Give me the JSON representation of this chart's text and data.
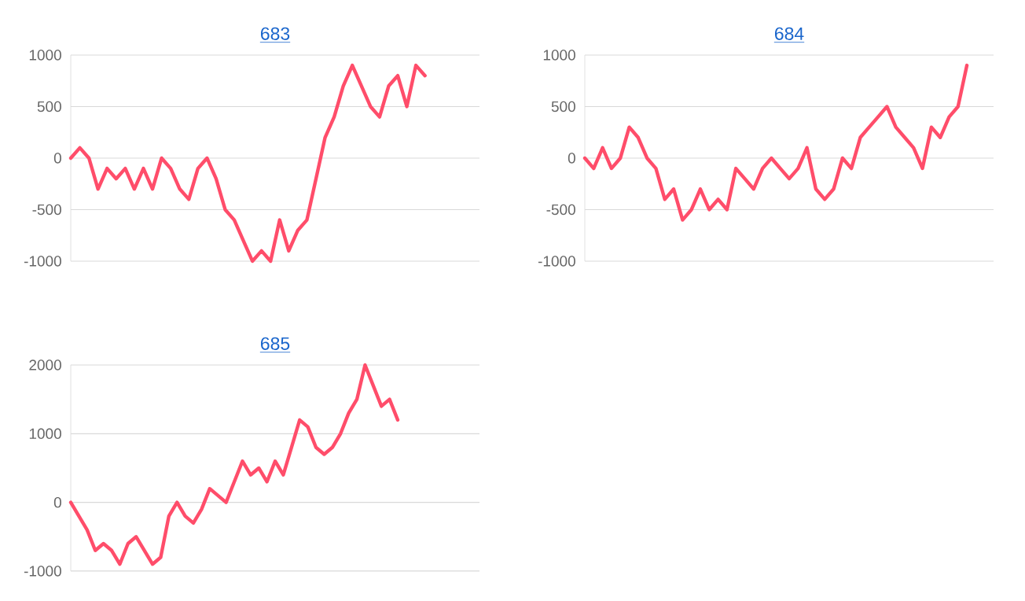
{
  "chart_data": [
    {
      "type": "line",
      "title": "683",
      "categories": [
        null,
        null,
        null,
        null,
        null,
        null,
        null,
        null,
        null,
        null,
        null,
        null,
        null,
        null,
        null,
        null,
        null,
        null,
        null,
        null,
        null,
        null,
        null,
        null,
        null,
        null,
        null,
        null,
        null,
        null,
        null,
        null,
        null,
        null,
        null,
        null,
        null,
        null,
        null,
        null,
        null,
        null,
        null,
        null,
        null,
        null
      ],
      "series": [
        {
          "color": "#ff4d6a",
          "values": [
            0,
            100,
            0,
            -300,
            -100,
            -200,
            -100,
            -300,
            -100,
            -300,
            0,
            -100,
            -300,
            -400,
            -100,
            0,
            -200,
            -500,
            -600,
            -800,
            -1000,
            -900,
            -1000,
            -600,
            -900,
            -700,
            -600,
            -200,
            200,
            400,
            700,
            900,
            700,
            500,
            400,
            700,
            800,
            500,
            900,
            800,
            null,
            null,
            null,
            null,
            null,
            null
          ]
        }
      ],
      "ylim": [
        -1000,
        1000
      ],
      "yticks": [
        -1000,
        -500,
        0,
        500,
        1000
      ],
      "grid": "y",
      "tick_labels": "y"
    },
    {
      "type": "line",
      "title": "684",
      "categories": [
        null,
        null,
        null,
        null,
        null,
        null,
        null,
        null,
        null,
        null,
        null,
        null,
        null,
        null,
        null,
        null,
        null,
        null,
        null,
        null,
        null,
        null,
        null,
        null,
        null,
        null,
        null,
        null,
        null,
        null,
        null,
        null,
        null,
        null,
        null,
        null,
        null,
        null,
        null,
        null,
        null,
        null,
        null,
        null,
        null,
        null,
        null
      ],
      "series": [
        {
          "color": "#ff4d6a",
          "values": [
            0,
            -100,
            100,
            -100,
            0,
            300,
            200,
            0,
            -100,
            -400,
            -300,
            -600,
            -500,
            -300,
            -500,
            -400,
            -500,
            -100,
            -200,
            -300,
            -100,
            0,
            -100,
            -200,
            -100,
            100,
            -300,
            -400,
            -300,
            0,
            -100,
            200,
            300,
            400,
            500,
            300,
            200,
            100,
            -100,
            300,
            200,
            400,
            500,
            900,
            null,
            null,
            null
          ]
        }
      ],
      "ylim": [
        -1000,
        1000
      ],
      "yticks": [
        -1000,
        -500,
        0,
        500,
        1000
      ],
      "grid": "y",
      "tick_labels": "y"
    },
    {
      "type": "line",
      "title": "685",
      "categories": [
        null,
        null,
        null,
        null,
        null,
        null,
        null,
        null,
        null,
        null,
        null,
        null,
        null,
        null,
        null,
        null,
        null,
        null,
        null,
        null,
        null,
        null,
        null,
        null,
        null,
        null,
        null,
        null,
        null,
        null,
        null,
        null,
        null,
        null,
        null,
        null,
        null,
        null,
        null,
        null,
        null,
        null,
        null,
        null,
        null,
        null,
        null,
        null,
        null,
        null,
        null
      ],
      "series": [
        {
          "color": "#ff4d6a",
          "values": [
            0,
            -200,
            -400,
            -700,
            -600,
            -700,
            -900,
            -600,
            -500,
            -700,
            -900,
            -800,
            -200,
            0,
            -200,
            -300,
            -100,
            200,
            100,
            0,
            300,
            600,
            400,
            500,
            300,
            600,
            400,
            800,
            1200,
            1100,
            800,
            700,
            800,
            1000,
            1300,
            1500,
            2000,
            1700,
            1400,
            1500,
            1200,
            null,
            null,
            null,
            null,
            null,
            null,
            null,
            null,
            null,
            null
          ]
        }
      ],
      "ylim": [
        -1000,
        2000
      ],
      "yticks": [
        -1000,
        0,
        1000,
        2000
      ],
      "grid": "y",
      "tick_labels": "y"
    }
  ]
}
